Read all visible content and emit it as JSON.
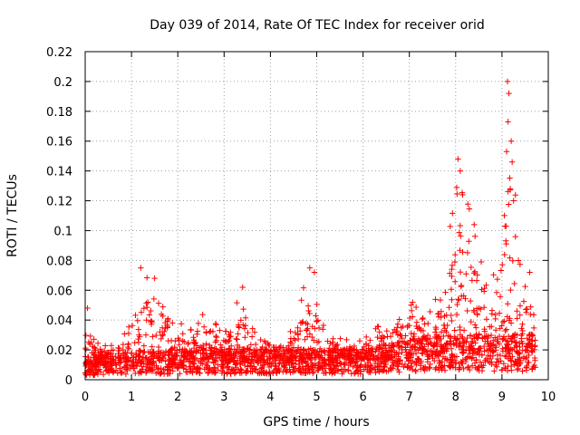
{
  "chart_data": {
    "type": "scatter",
    "title": "Day 039 of 2014, Rate Of TEC Index for receiver orid",
    "xlabel": "GPS time / hours",
    "ylabel": "ROTI / TECUs",
    "xlim": [
      0,
      10
    ],
    "ylim": [
      0,
      0.22
    ],
    "xticks": [
      "0",
      "1",
      "2",
      "3",
      "4",
      "5",
      "6",
      "7",
      "8",
      "9",
      "10"
    ],
    "yticks": [
      "0",
      "0.02",
      "0.04",
      "0.06",
      "0.08",
      "0.1",
      "0.12",
      "0.14",
      "0.16",
      "0.18",
      "0.2",
      "0.22"
    ],
    "grid": true,
    "marker": "+",
    "color": "#ff0000",
    "x_range_hours": [
      0,
      9.75
    ],
    "envelope": {
      "hours": [
        0.0,
        0.1,
        0.3,
        0.5,
        0.8,
        1.0,
        1.2,
        1.4,
        1.6,
        1.9,
        2.2,
        2.6,
        3.0,
        3.4,
        3.7,
        4.0,
        4.4,
        4.8,
        4.95,
        5.2,
        5.5,
        6.0,
        6.2,
        6.5,
        6.8,
        7.0,
        7.4,
        7.8,
        8.0,
        8.2,
        8.4,
        8.6,
        8.8,
        9.0,
        9.15,
        9.3,
        9.5,
        9.75
      ],
      "baseline": [
        0.01,
        0.01,
        0.01,
        0.011,
        0.011,
        0.012,
        0.012,
        0.012,
        0.012,
        0.013,
        0.013,
        0.014,
        0.013,
        0.013,
        0.013,
        0.013,
        0.013,
        0.013,
        0.013,
        0.013,
        0.013,
        0.013,
        0.014,
        0.015,
        0.016,
        0.017,
        0.018,
        0.019,
        0.019,
        0.019,
        0.019,
        0.019,
        0.019,
        0.019,
        0.019,
        0.019,
        0.019,
        0.019
      ],
      "peak": [
        0.048,
        0.035,
        0.025,
        0.022,
        0.028,
        0.045,
        0.075,
        0.07,
        0.055,
        0.05,
        0.03,
        0.05,
        0.03,
        0.062,
        0.035,
        0.028,
        0.03,
        0.075,
        0.07,
        0.03,
        0.028,
        0.03,
        0.055,
        0.035,
        0.045,
        0.055,
        0.05,
        0.08,
        0.148,
        0.125,
        0.105,
        0.08,
        0.095,
        0.1,
        0.2,
        0.14,
        0.065,
        0.072
      ]
    },
    "notable_points": [
      {
        "x": 0.05,
        "y": 0.048
      },
      {
        "x": 1.2,
        "y": 0.075
      },
      {
        "x": 1.5,
        "y": 0.068
      },
      {
        "x": 3.4,
        "y": 0.062
      },
      {
        "x": 4.85,
        "y": 0.075
      },
      {
        "x": 4.95,
        "y": 0.072
      },
      {
        "x": 8.05,
        "y": 0.148
      },
      {
        "x": 8.1,
        "y": 0.14
      },
      {
        "x": 8.15,
        "y": 0.124
      },
      {
        "x": 8.4,
        "y": 0.104
      },
      {
        "x": 9.12,
        "y": 0.2
      },
      {
        "x": 9.15,
        "y": 0.192
      },
      {
        "x": 9.13,
        "y": 0.173
      },
      {
        "x": 9.2,
        "y": 0.16
      },
      {
        "x": 9.22,
        "y": 0.146
      },
      {
        "x": 9.18,
        "y": 0.128
      },
      {
        "x": 9.25,
        "y": 0.12
      },
      {
        "x": 9.1,
        "y": 0.153
      },
      {
        "x": 9.6,
        "y": 0.072
      }
    ]
  }
}
